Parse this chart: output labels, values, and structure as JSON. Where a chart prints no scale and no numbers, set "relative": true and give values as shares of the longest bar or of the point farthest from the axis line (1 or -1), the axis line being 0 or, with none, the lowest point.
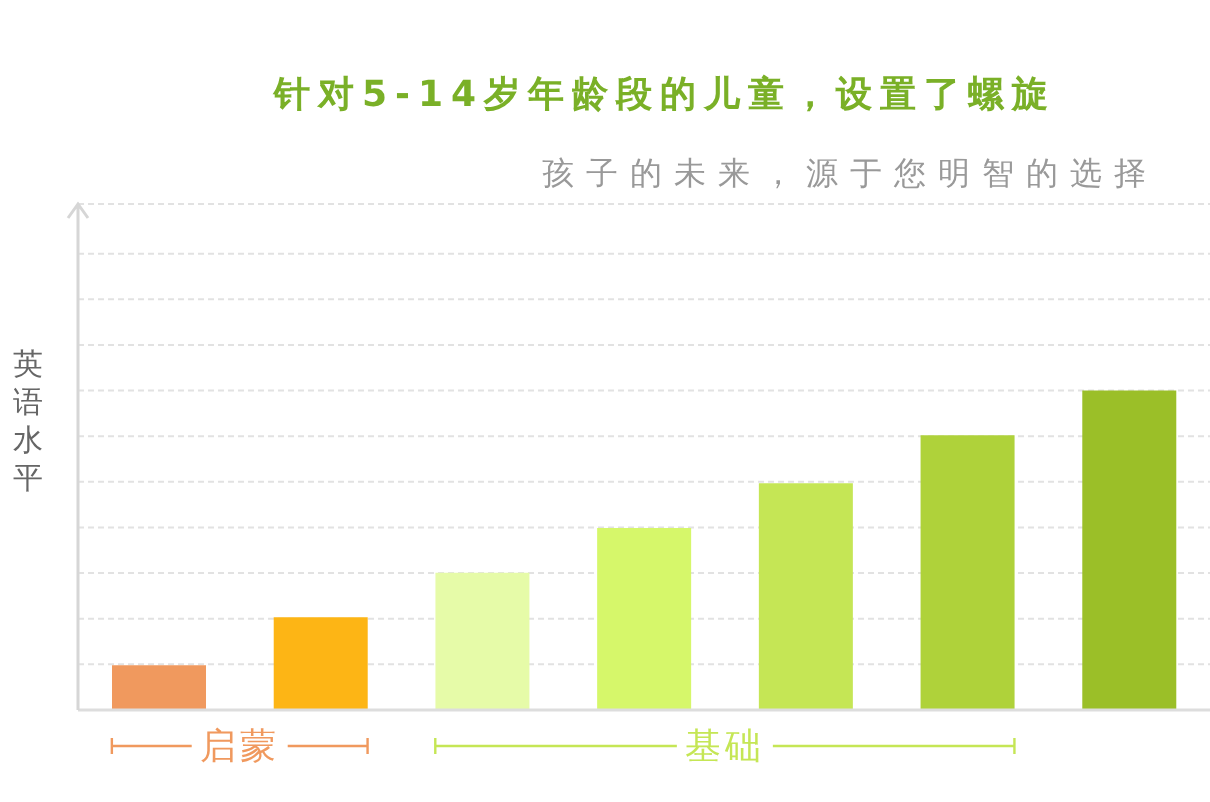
{
  "chart_data": {
    "type": "bar",
    "title": "针对5-14岁年龄段的儿童，设置了螺旋",
    "subtitle": "孩子的未来，源于您明智的选择",
    "ylabel": "英语水平",
    "categories": [
      null,
      null,
      null,
      null,
      null,
      null,
      null
    ],
    "values": [
      0.14,
      0.29,
      0.43,
      0.57,
      0.71,
      0.86,
      1
    ],
    "colors": [
      "#f0995e",
      "#fdb515",
      "#e6fba8",
      "#d6f76a",
      "#c5e655",
      "#afd23a",
      "#9bbf28"
    ],
    "relative": true,
    "grid": "y",
    "annotations": [
      "启蒙",
      "基础"
    ]
  }
}
